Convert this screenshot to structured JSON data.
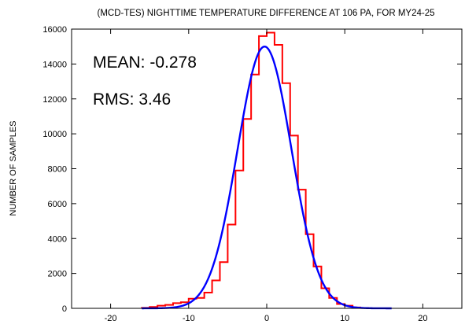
{
  "chart_data": {
    "type": "histogram",
    "title": "(MCD-TES) NIGHTTIME TEMPERATURE DIFFERENCE AT 106 PA, FOR MY24-25",
    "xlabel": "",
    "ylabel": "NUMBER OF SAMPLES",
    "xlim": [
      -25,
      25
    ],
    "ylim": [
      0,
      16000
    ],
    "xticks": [
      -20,
      -10,
      0,
      10,
      20
    ],
    "yticks": [
      0,
      2000,
      4000,
      6000,
      8000,
      10000,
      12000,
      14000,
      16000
    ],
    "grid": false,
    "annotations": [
      {
        "key": "mean",
        "text": "MEAN: -0.278"
      },
      {
        "key": "rms",
        "text": "RMS: 3.46"
      }
    ],
    "series": [
      {
        "kind": "step-histogram",
        "color": "#ff0000",
        "bin_width": 1,
        "bins": [
          {
            "x0": -16,
            "value": 30
          },
          {
            "x0": -15,
            "value": 80
          },
          {
            "x0": -14,
            "value": 150
          },
          {
            "x0": -13,
            "value": 200
          },
          {
            "x0": -12,
            "value": 300
          },
          {
            "x0": -11,
            "value": 350
          },
          {
            "x0": -10,
            "value": 550
          },
          {
            "x0": -9,
            "value": 600
          },
          {
            "x0": -8,
            "value": 900
          },
          {
            "x0": -7,
            "value": 1600
          },
          {
            "x0": -6,
            "value": 2650
          },
          {
            "x0": -5,
            "value": 4800
          },
          {
            "x0": -4,
            "value": 7900
          },
          {
            "x0": -3,
            "value": 10850
          },
          {
            "x0": -2,
            "value": 13400
          },
          {
            "x0": -1,
            "value": 15600
          },
          {
            "x0": 0,
            "value": 15800
          },
          {
            "x0": 1,
            "value": 15100
          },
          {
            "x0": 2,
            "value": 12900
          },
          {
            "x0": 3,
            "value": 9900
          },
          {
            "x0": 4,
            "value": 6800
          },
          {
            "x0": 5,
            "value": 4250
          },
          {
            "x0": 6,
            "value": 2400
          },
          {
            "x0": 7,
            "value": 1150
          },
          {
            "x0": 8,
            "value": 600
          },
          {
            "x0": 9,
            "value": 250
          },
          {
            "x0": 10,
            "value": 150
          },
          {
            "x0": 11,
            "value": 50
          },
          {
            "x0": 12,
            "value": 20
          }
        ]
      },
      {
        "kind": "gaussian-fit",
        "color": "#0000ff",
        "peak": 15000,
        "mean": -0.278,
        "sigma": 3.46,
        "x_range": [
          -16,
          16
        ]
      }
    ]
  }
}
